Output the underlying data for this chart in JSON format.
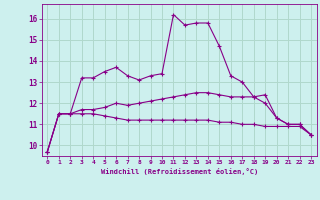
{
  "xlabel": "Windchill (Refroidissement éolien,°C)",
  "ylabel": "",
  "background_color": "#cdf0ee",
  "grid_color": "#b0d8cc",
  "line_color": "#880088",
  "spine_color": "#880088",
  "xlim": [
    -0.5,
    23.5
  ],
  "ylim": [
    9.5,
    16.7
  ],
  "xticks": [
    0,
    1,
    2,
    3,
    4,
    5,
    6,
    7,
    8,
    9,
    10,
    11,
    12,
    13,
    14,
    15,
    16,
    17,
    18,
    19,
    20,
    21,
    22,
    23
  ],
  "yticks": [
    10,
    11,
    12,
    13,
    14,
    15,
    16
  ],
  "hours": [
    0,
    1,
    2,
    3,
    4,
    5,
    6,
    7,
    8,
    9,
    10,
    11,
    12,
    13,
    14,
    15,
    16,
    17,
    18,
    19,
    20,
    21,
    22,
    23
  ],
  "series1": [
    9.7,
    11.5,
    11.5,
    13.2,
    13.2,
    13.5,
    13.7,
    13.3,
    13.1,
    13.3,
    13.4,
    16.2,
    15.7,
    15.8,
    15.8,
    14.7,
    13.3,
    13.0,
    12.3,
    12.0,
    11.3,
    11.0,
    11.0,
    10.5
  ],
  "series2": [
    9.7,
    11.5,
    11.5,
    11.7,
    11.7,
    11.8,
    12.0,
    11.9,
    12.0,
    12.1,
    12.2,
    12.3,
    12.4,
    12.5,
    12.5,
    12.4,
    12.3,
    12.3,
    12.3,
    12.4,
    11.3,
    11.0,
    11.0,
    10.5
  ],
  "series3": [
    9.7,
    11.5,
    11.5,
    11.5,
    11.5,
    11.4,
    11.3,
    11.2,
    11.2,
    11.2,
    11.2,
    11.2,
    11.2,
    11.2,
    11.2,
    11.1,
    11.1,
    11.0,
    11.0,
    10.9,
    10.9,
    10.9,
    10.9,
    10.5
  ]
}
